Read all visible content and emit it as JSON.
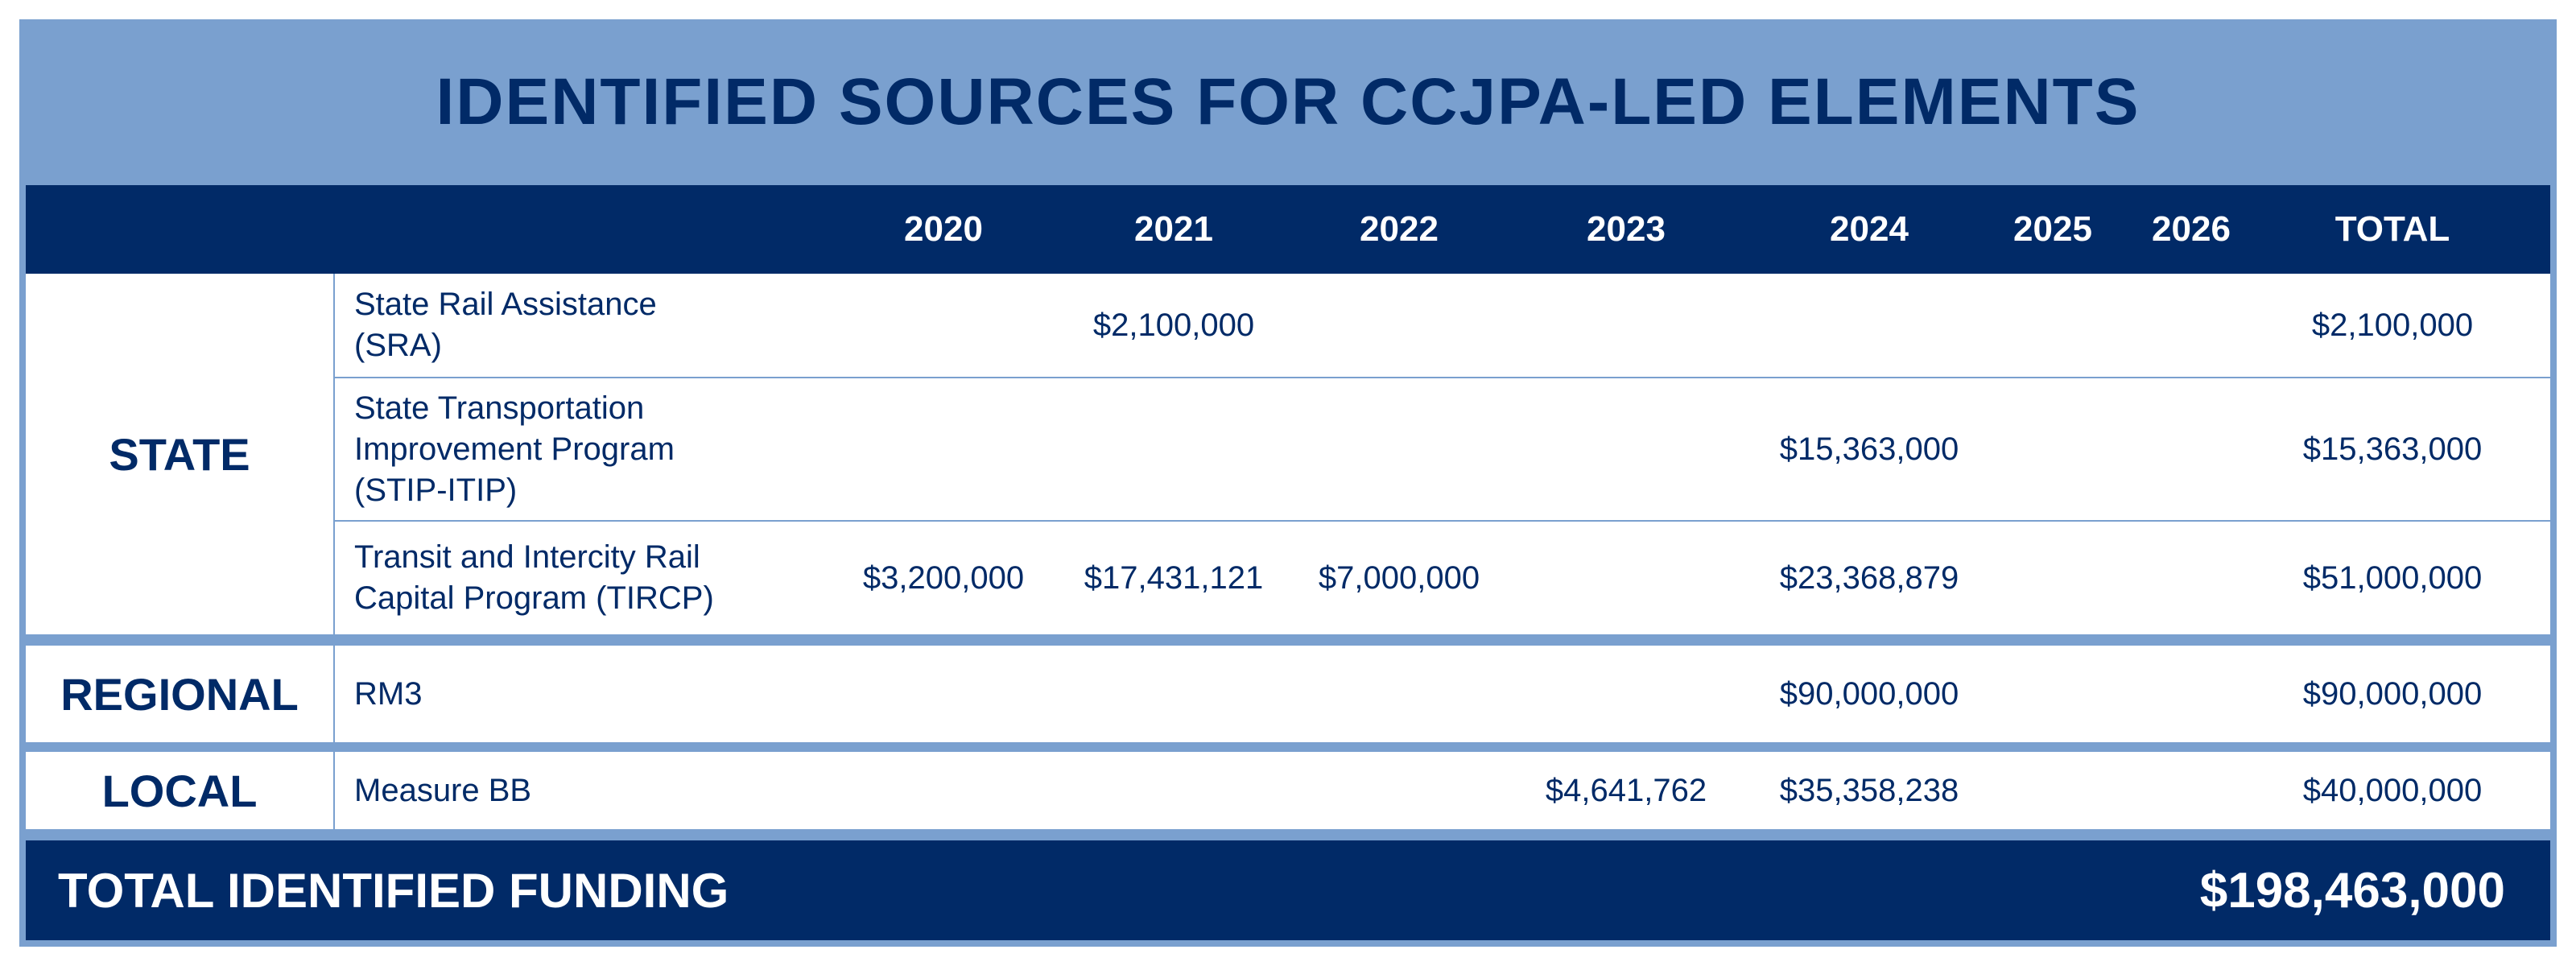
{
  "title": "IDENTIFIED SOURCES FOR CCJPA-LED ELEMENTS",
  "header": {
    "columns": [
      "2020",
      "2021",
      "2022",
      "2023",
      "2024",
      "2025",
      "2026",
      "TOTAL"
    ]
  },
  "groups": {
    "state": {
      "label": "STATE",
      "rows": [
        {
          "name_lines": [
            "State Rail Assistance",
            "(SRA)"
          ],
          "y2021": "$2,100,000",
          "total": "$2,100,000"
        },
        {
          "name_lines": [
            "State Transportation",
            "Improvement Program",
            "(STIP-ITIP)"
          ],
          "y2024": "$15,363,000",
          "total": "$15,363,000"
        },
        {
          "name_lines": [
            "Transit and Intercity Rail",
            "Capital Program (TIRCP)"
          ],
          "y2020": "$3,200,000",
          "y2021": "$17,431,121",
          "y2022": "$7,000,000",
          "y2024": "$23,368,879",
          "total": "$51,000,000"
        }
      ]
    },
    "regional": {
      "label": "REGIONAL",
      "rows": [
        {
          "name": "RM3",
          "y2024": "$90,000,000",
          "total": "$90,000,000"
        }
      ]
    },
    "local": {
      "label": "LOCAL",
      "rows": [
        {
          "name": "Measure BB",
          "y2023": "$4,641,762",
          "y2024": "$35,358,238",
          "total": "$40,000,000"
        }
      ]
    }
  },
  "footer": {
    "label": "TOTAL IDENTIFIED FUNDING",
    "value": "$198,463,000"
  },
  "colors": {
    "navy": "#012a67",
    "light_blue": "#7aa0cf",
    "white": "#ffffff"
  }
}
